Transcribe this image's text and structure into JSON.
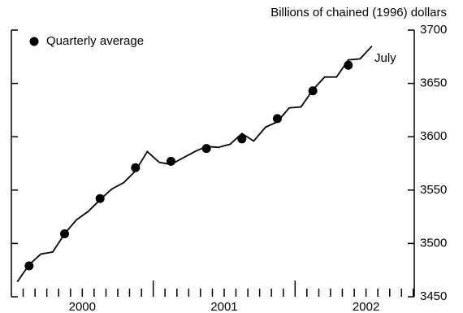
{
  "chart_data": {
    "type": "line",
    "title": "Billions of chained (1996) dollars",
    "annotation": "July",
    "x": [
      2000.042,
      2000.125,
      2000.208,
      2000.292,
      2000.375,
      2000.458,
      2000.542,
      2000.625,
      2000.708,
      2000.792,
      2000.875,
      2000.958,
      2001.042,
      2001.125,
      2001.208,
      2001.292,
      2001.375,
      2001.458,
      2001.542,
      2001.625,
      2001.708,
      2001.792,
      2001.875,
      2001.958,
      2002.042,
      2002.125,
      2002.208,
      2002.292,
      2002.375,
      2002.458,
      2002.542
    ],
    "values": [
      3464,
      3480,
      3490,
      3492,
      3509,
      3522,
      3530,
      3541,
      3551,
      3557,
      3568,
      3586,
      3576,
      3574,
      3580,
      3586,
      3591,
      3590,
      3593,
      3603,
      3596,
      3609,
      3614,
      3627,
      3628,
      3644,
      3656,
      3656,
      3672,
      3673,
      3685
    ],
    "color": "#000000",
    "dots": {
      "name": "Quarterly average",
      "color": "#000000",
      "x": [
        2000.125,
        2000.375,
        2000.625,
        2000.875,
        2001.125,
        2001.375,
        2001.625,
        2001.875,
        2002.125,
        2002.375
      ],
      "values": [
        3479,
        3509,
        3542,
        3571,
        3577,
        3589,
        3598,
        3617,
        3643,
        3667
      ]
    },
    "xlim": [
      2000,
      2002.84
    ],
    "xticks": [
      {
        "value": 2000.5,
        "label": "2000"
      },
      {
        "value": 2001.5,
        "label": "2001"
      },
      {
        "value": 2002.5,
        "label": "2002"
      }
    ],
    "minor_xticks": [
      2000.083,
      2000.167,
      2000.25,
      2000.333,
      2000.417,
      2000.5,
      2000.583,
      2000.667,
      2000.75,
      2000.833,
      2000.917,
      2001,
      2001.083,
      2001.167,
      2001.25,
      2001.333,
      2001.417,
      2001.5,
      2001.583,
      2001.667,
      2001.75,
      2001.833,
      2001.917,
      2002,
      2002.083,
      2002.167,
      2002.25,
      2002.333,
      2002.417,
      2002.5,
      2002.583,
      2002.667,
      2002.75,
      2002.833
    ],
    "ylim": [
      3450,
      3700
    ],
    "yticks": [
      3450,
      3500,
      3550,
      3600,
      3650,
      3700
    ]
  }
}
